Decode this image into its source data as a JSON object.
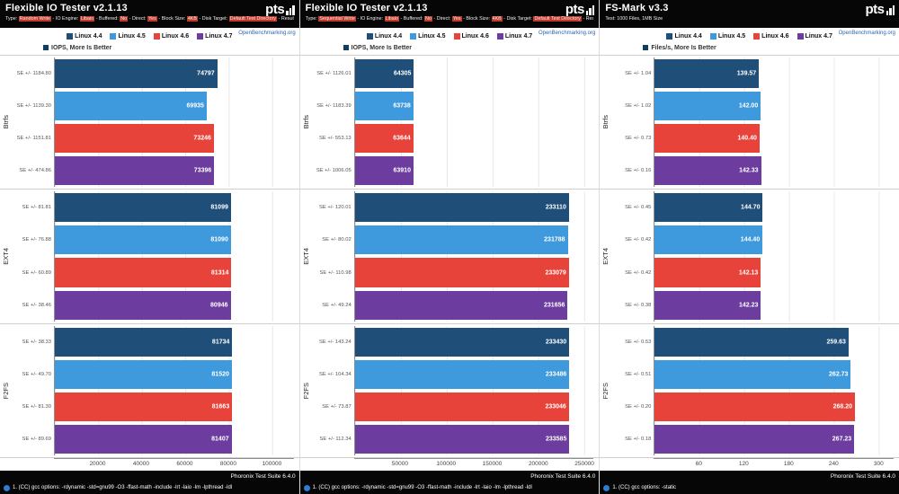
{
  "ui": {
    "watermark": "OpenBenchmarking.org",
    "pts_text": "pts",
    "series_colors": [
      "#1f4e79",
      "#3e9adc",
      "#e8433a",
      "#6c3d9e"
    ],
    "highlight_color": "#c0392b"
  },
  "chart_data": [
    {
      "type": "bar",
      "orientation": "horizontal",
      "title": "Flexible IO Tester v2.1.13",
      "subtitle_segments": [
        {
          "t": "Type: ",
          "hl": false
        },
        {
          "t": "Random Write",
          "hl": true
        },
        {
          "t": " - IO Engine: ",
          "hl": false
        },
        {
          "t": "Libaio",
          "hl": true
        },
        {
          "t": " - Buffered: ",
          "hl": false
        },
        {
          "t": "No",
          "hl": true
        },
        {
          "t": " - Direct: ",
          "hl": false
        },
        {
          "t": "Yes",
          "hl": true
        },
        {
          "t": " - Block Size: ",
          "hl": false
        },
        {
          "t": "4KB",
          "hl": true
        },
        {
          "t": " - Disk Target: ",
          "hl": false
        },
        {
          "t": "Default Test Directory",
          "hl": true
        },
        {
          "t": " - Result: ",
          "hl": false
        },
        {
          "t": "IOPS",
          "hl": true
        }
      ],
      "legend": [
        "Linux 4.4",
        "Linux 4.5",
        "Linux 4.6",
        "Linux 4.7"
      ],
      "unit_label": "IOPS, More Is Better",
      "x_ticks": [
        20000,
        40000,
        60000,
        80000,
        100000
      ],
      "x_max": 110000,
      "groups": [
        {
          "label": "Btrfs",
          "bars": [
            {
              "se": "SE +/- 1184.80",
              "value": 74797,
              "label": "74797"
            },
            {
              "se": "SE +/- 1139.30",
              "value": 69935,
              "label": "69935"
            },
            {
              "se": "SE +/- 1151.81",
              "value": 73246,
              "label": "73246"
            },
            {
              "se": "SE +/- 474.86",
              "value": 73396,
              "label": "73396"
            }
          ]
        },
        {
          "label": "EXT4",
          "bars": [
            {
              "se": "SE +/- 81.81",
              "value": 81099,
              "label": "81099"
            },
            {
              "se": "SE +/- 76.88",
              "value": 81090,
              "label": "81090"
            },
            {
              "se": "SE +/- 60.89",
              "value": 81314,
              "label": "81314"
            },
            {
              "se": "SE +/- 38.46",
              "value": 80946,
              "label": "80946"
            }
          ]
        },
        {
          "label": "F2FS",
          "bars": [
            {
              "se": "SE +/- 38.33",
              "value": 81734,
              "label": "81734"
            },
            {
              "se": "SE +/- 49.70",
              "value": 81520,
              "label": "81520"
            },
            {
              "se": "SE +/- 81.30",
              "value": 81663,
              "label": "81663"
            },
            {
              "se": "SE +/- 89.69",
              "value": 81407,
              "label": "81407"
            }
          ]
        }
      ],
      "footer_note": "1. (CC) gcc options: -rdynamic -std=gnu99 -O3 -ffast-math -include -lrt -laio -lm -lpthread -ldl",
      "footer_version": "Phoronix Test Suite 6.4.0"
    },
    {
      "type": "bar",
      "orientation": "horizontal",
      "title": "Flexible IO Tester v2.1.13",
      "subtitle_segments": [
        {
          "t": "Type: ",
          "hl": false
        },
        {
          "t": "Sequential Write",
          "hl": true
        },
        {
          "t": " - IO Engine: ",
          "hl": false
        },
        {
          "t": "Libaio",
          "hl": true
        },
        {
          "t": " - Buffered: ",
          "hl": false
        },
        {
          "t": "No",
          "hl": true
        },
        {
          "t": " - Direct: ",
          "hl": false
        },
        {
          "t": "Yes",
          "hl": true
        },
        {
          "t": " - Block Size: ",
          "hl": false
        },
        {
          "t": "4KB",
          "hl": true
        },
        {
          "t": " - Disk Target: ",
          "hl": false
        },
        {
          "t": "Default Test Directory",
          "hl": true
        },
        {
          "t": " - Result: ",
          "hl": false
        },
        {
          "t": "IOPS",
          "hl": true
        }
      ],
      "legend": [
        "Linux 4.4",
        "Linux 4.5",
        "Linux 4.6",
        "Linux 4.7"
      ],
      "unit_label": "IOPS, More Is Better",
      "x_ticks": [
        50000,
        100000,
        150000,
        200000,
        250000
      ],
      "x_max": 260000,
      "groups": [
        {
          "label": "Btrfs",
          "bars": [
            {
              "se": "SE +/- 1126.01",
              "value": 64305,
              "label": "64305"
            },
            {
              "se": "SE +/- 1183.39",
              "value": 63738,
              "label": "63738"
            },
            {
              "se": "SE +/- 553.13",
              "value": 63644,
              "label": "63644"
            },
            {
              "se": "SE +/- 1006.05",
              "value": 63910,
              "label": "63910"
            }
          ]
        },
        {
          "label": "EXT4",
          "bars": [
            {
              "se": "SE +/- 120.01",
              "value": 233110,
              "label": "233110"
            },
            {
              "se": "SE +/- 80.02",
              "value": 231788,
              "label": "231788"
            },
            {
              "se": "SE +/- 110.98",
              "value": 233079,
              "label": "233079"
            },
            {
              "se": "SE +/- 49.24",
              "value": 231656,
              "label": "231656"
            }
          ]
        },
        {
          "label": "F2FS",
          "bars": [
            {
              "se": "SE +/- 143.24",
              "value": 233430,
              "label": "233430"
            },
            {
              "se": "SE +/- 104.34",
              "value": 233486,
              "label": "233486"
            },
            {
              "se": "SE +/- 73.87",
              "value": 233046,
              "label": "233046"
            },
            {
              "se": "SE +/- 112.34",
              "value": 233585,
              "label": "233585"
            }
          ]
        }
      ],
      "footer_note": "1. (CC) gcc options: -rdynamic -std=gnu99 -O3 -ffast-math -include -lrt -laio -lm -lpthread -ldl",
      "footer_version": "Phoronix Test Suite 6.4.0"
    },
    {
      "type": "bar",
      "orientation": "horizontal",
      "title": "FS-Mark v3.3",
      "subtitle_segments": [
        {
          "t": "Test: 1000 Files, 1MB Size",
          "hl": false
        }
      ],
      "legend": [
        "Linux 4.4",
        "Linux 4.5",
        "Linux 4.6",
        "Linux 4.7"
      ],
      "unit_label": "Files/s, More Is Better",
      "x_ticks": [
        60,
        120,
        180,
        240,
        300
      ],
      "x_max": 320,
      "groups": [
        {
          "label": "Btrfs",
          "bars": [
            {
              "se": "SE +/- 1.04",
              "value": 139.57,
              "label": "139.57"
            },
            {
              "se": "SE +/- 1.02",
              "value": 142.0,
              "label": "142.00"
            },
            {
              "se": "SE +/- 0.73",
              "value": 140.4,
              "label": "140.40"
            },
            {
              "se": "SE +/- 0.16",
              "value": 142.33,
              "label": "142.33"
            }
          ]
        },
        {
          "label": "EXT4",
          "bars": [
            {
              "se": "SE +/- 0.45",
              "value": 144.7,
              "label": "144.70"
            },
            {
              "se": "SE +/- 0.42",
              "value": 144.4,
              "label": "144.40"
            },
            {
              "se": "SE +/- 0.42",
              "value": 142.13,
              "label": "142.13"
            },
            {
              "se": "SE +/- 0.38",
              "value": 142.23,
              "label": "142.23"
            }
          ]
        },
        {
          "label": "F2FS",
          "bars": [
            {
              "se": "SE +/- 0.53",
              "value": 259.63,
              "label": "259.63"
            },
            {
              "se": "SE +/- 0.51",
              "value": 262.73,
              "label": "262.73"
            },
            {
              "se": "SE +/- 0.20",
              "value": 268.2,
              "label": "268.20"
            },
            {
              "se": "SE +/- 0.18",
              "value": 267.23,
              "label": "267.23"
            }
          ]
        }
      ],
      "footer_note": "1. (CC) gcc options: -static",
      "footer_version": "Phoronix Test Suite 6.4.0"
    }
  ]
}
